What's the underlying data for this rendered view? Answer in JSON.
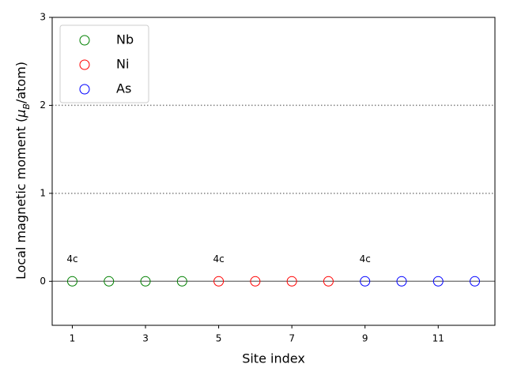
{
  "chart_data": {
    "type": "scatter",
    "xlabel": "Site index",
    "ylabel": [
      "Local magnetic moment (",
      "μ",
      "B",
      "/atom)"
    ],
    "series": [
      {
        "name": "Nb",
        "color": "#008000",
        "x": [
          1,
          2,
          3,
          4
        ],
        "values": [
          0,
          0,
          0,
          0
        ]
      },
      {
        "name": "Ni",
        "color": "#ff0000",
        "x": [
          5,
          6,
          7,
          8
        ],
        "values": [
          0,
          0,
          0,
          0
        ]
      },
      {
        "name": "As",
        "color": "#0000ff",
        "x": [
          9,
          10,
          11,
          12
        ],
        "values": [
          0,
          0,
          0,
          0
        ]
      }
    ],
    "markers": "hollow-circle",
    "annotations": [
      {
        "text": "4c",
        "x": 1,
        "y": 0.25
      },
      {
        "text": "4c",
        "x": 5,
        "y": 0.25
      },
      {
        "text": "4c",
        "x": 9,
        "y": 0.25
      }
    ],
    "hlines": [
      {
        "y": 0,
        "style": "solid"
      },
      {
        "y": 1,
        "style": "dotted"
      },
      {
        "y": 2,
        "style": "dotted"
      }
    ],
    "xlim": [
      0.45,
      12.55
    ],
    "ylim": [
      -0.5,
      3
    ],
    "xticks": [
      1,
      3,
      5,
      7,
      9,
      11
    ],
    "yticks": [
      0,
      1,
      2,
      3
    ],
    "legend": "upper left"
  }
}
